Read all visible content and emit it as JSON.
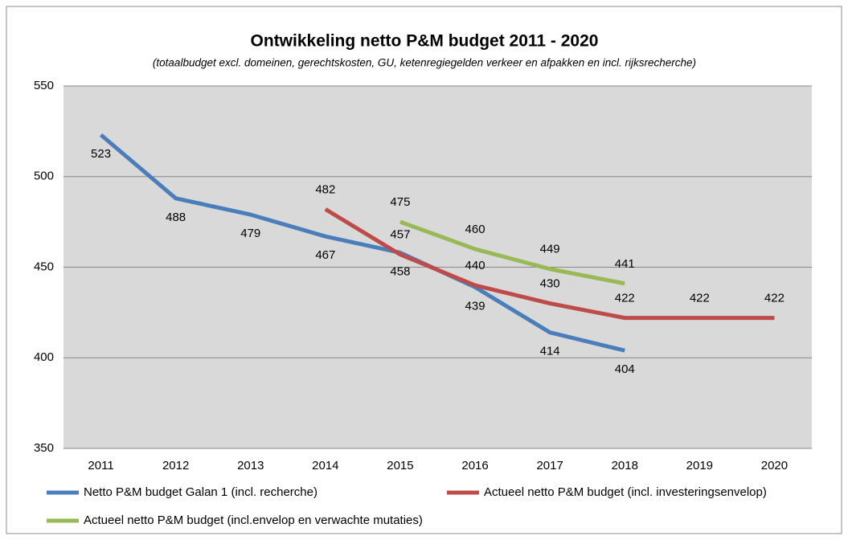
{
  "chart_data": {
    "type": "line",
    "title": "Ontwikkeling netto P&M budget 2011 - 2020",
    "subtitle": "(totaalbudget excl. domeinen, gerechtskosten, GU, ketenregiegelden verkeer en afpakken en incl. rijksrecherche)",
    "categories": [
      "2011",
      "2012",
      "2013",
      "2014",
      "2015",
      "2016",
      "2017",
      "2018",
      "2019",
      "2020"
    ],
    "series": [
      {
        "name": "Netto P&M budget Galan 1 (incl. recherche)",
        "color": "#4a7ebb",
        "values": [
          523,
          488,
          479,
          467,
          458,
          439,
          414,
          404,
          null,
          null
        ]
      },
      {
        "name": "Actueel netto P&M budget (incl. investeringsenvelop)",
        "color": "#be4b48",
        "values": [
          null,
          null,
          null,
          482,
          457,
          440,
          430,
          422,
          422,
          422
        ]
      },
      {
        "name": "Actueel netto P&M budget (incl.envelop en verwachte mutaties)",
        "color": "#98b954",
        "values": [
          null,
          null,
          null,
          null,
          475,
          460,
          449,
          441,
          null,
          null
        ]
      }
    ],
    "ylim": [
      350,
      550
    ],
    "yticks": [
      350,
      400,
      450,
      500,
      550
    ],
    "grid": true
  }
}
